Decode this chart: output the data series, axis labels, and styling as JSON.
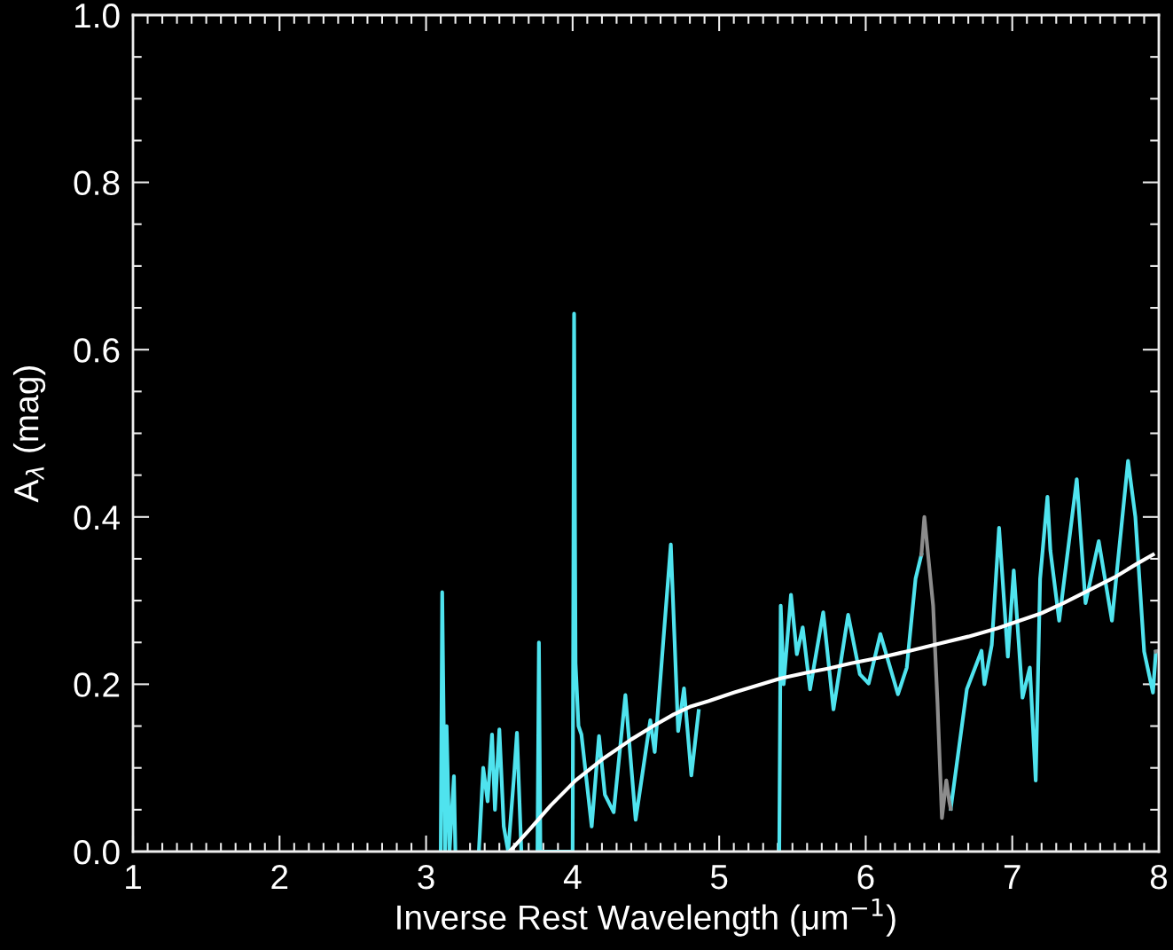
{
  "chart_data": {
    "type": "line",
    "xlabel": "Inverse Rest Wavelength (μm$^{−1}$)",
    "ylabel": "A$_{λ}$ (mag)",
    "xlim": [
      1,
      8
    ],
    "ylim": [
      0,
      1
    ],
    "xticks": [
      1,
      2,
      3,
      4,
      5,
      6,
      7,
      8
    ],
    "yticks": [
      {
        "value": 0,
        "label": "0.0"
      },
      {
        "value": 0.2,
        "label": "0.2"
      },
      {
        "value": 0.4,
        "label": "0.4"
      },
      {
        "value": 0.6,
        "label": "0.6"
      },
      {
        "value": 0.8,
        "label": "0.8"
      },
      {
        "value": 1,
        "label": "1.0"
      }
    ],
    "grid": false,
    "legend": false,
    "series": [
      {
        "color": "#4fe3ee",
        "x": [
          3.1,
          3.11,
          3.13,
          3.14,
          3.16,
          3.19,
          3.2,
          3.22,
          3.36,
          3.39,
          3.42,
          3.45,
          3.47,
          3.5,
          3.53,
          3.56,
          3.6,
          3.62,
          3.65,
          3.68,
          3.76,
          3.77,
          3.78,
          4.0,
          4.01,
          4.02,
          4.04,
          4.06,
          4.13,
          4.18,
          4.22,
          4.28,
          4.36,
          4.43,
          4.53,
          4.56,
          4.67,
          4.72,
          4.76,
          4.81,
          4.86,
          4.87,
          5.41,
          5.42,
          5.44,
          5.49,
          5.53,
          5.57,
          5.62,
          5.71,
          5.78,
          5.88,
          5.96,
          6.02,
          6.1,
          6.22,
          6.28,
          6.34,
          6.38,
          6.39,
          6.57,
          6.58,
          6.69,
          6.79,
          6.81,
          6.86,
          6.91,
          6.97,
          7.01,
          7.07,
          7.12,
          7.16,
          7.19,
          7.24,
          7.26,
          7.32,
          7.44,
          7.5,
          7.59,
          7.68,
          7.79,
          7.84,
          7.9,
          7.96,
          7.98
        ],
        "values": [
          0.0,
          0.31,
          0.0,
          0.15,
          0.0,
          0.09,
          0.0,
          null,
          0.0,
          0.1,
          0.06,
          0.14,
          0.05,
          0.146,
          0.03,
          0.0,
          0.09,
          0.142,
          0.0,
          null,
          0.0,
          0.25,
          0.0,
          0.0,
          0.643,
          0.225,
          0.15,
          0.14,
          0.03,
          0.138,
          0.068,
          0.047,
          0.187,
          0.038,
          0.157,
          0.119,
          0.367,
          0.144,
          0.195,
          0.091,
          0.168,
          null,
          0.0,
          0.294,
          0.2,
          0.307,
          0.236,
          0.268,
          0.194,
          0.286,
          0.17,
          0.283,
          0.212,
          0.201,
          0.26,
          0.188,
          0.22,
          0.326,
          0.355,
          null,
          null,
          0.051,
          0.194,
          0.24,
          0.2,
          0.247,
          0.387,
          0.233,
          0.336,
          0.184,
          0.22,
          0.085,
          0.326,
          0.424,
          0.36,
          0.276,
          0.445,
          0.297,
          0.371,
          0.276,
          0.467,
          0.4,
          0.239,
          0.19,
          0.239
        ]
      },
      {
        "color": "#8c8c8c",
        "x": [
          6.38,
          6.4,
          6.46,
          6.49,
          6.52,
          6.55,
          6.57,
          6.58
        ],
        "values": [
          0.355,
          0.4,
          0.294,
          0.177,
          0.04,
          0.085,
          0.06,
          0.051
        ]
      },
      {
        "color": "#8c8c8c",
        "x": [
          7.98,
          8.0
        ],
        "values": [
          0.239,
          0.24
        ]
      },
      {
        "color": "#ffffff",
        "x": [
          3.57,
          3.7,
          3.85,
          4.02,
          4.2,
          4.4,
          4.55,
          4.69,
          4.8,
          4.93,
          5.1,
          5.25,
          5.42,
          5.6,
          5.75,
          5.9,
          6.1,
          6.3,
          6.51,
          6.7,
          6.9,
          7.05,
          7.2,
          7.35,
          7.53,
          7.7,
          7.85,
          7.96
        ],
        "values": [
          0.0,
          0.025,
          0.055,
          0.085,
          0.11,
          0.134,
          0.15,
          0.164,
          0.173,
          0.18,
          0.19,
          0.198,
          0.207,
          0.214,
          0.219,
          0.225,
          0.232,
          0.24,
          0.249,
          0.257,
          0.267,
          0.276,
          0.285,
          0.297,
          0.313,
          0.328,
          0.344,
          0.355
        ]
      }
    ]
  }
}
